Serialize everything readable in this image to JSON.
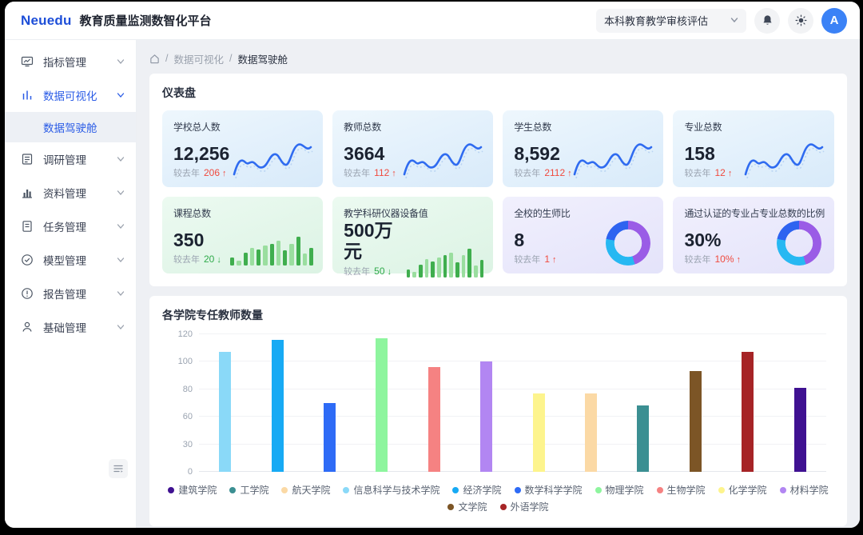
{
  "header": {
    "logo": "Neuedu",
    "title": "教育质量监测数智化平台",
    "project_select": {
      "value": "本科教育教学审核评估"
    },
    "avatar": "A"
  },
  "sidebar": {
    "items": [
      {
        "label": "指标管理",
        "icon": "gauge-icon",
        "active": false
      },
      {
        "label": "数据可视化",
        "icon": "bar-chart-icon",
        "active": true,
        "children": [
          {
            "label": "数据驾驶舱",
            "active": true
          }
        ]
      },
      {
        "label": "调研管理",
        "icon": "clipboard-icon",
        "active": false
      },
      {
        "label": "资料管理",
        "icon": "column-chart-icon",
        "active": false
      },
      {
        "label": "任务管理",
        "icon": "document-icon",
        "active": false
      },
      {
        "label": "模型管理",
        "icon": "check-circle-icon",
        "active": false
      },
      {
        "label": "报告管理",
        "icon": "info-circle-icon",
        "active": false
      },
      {
        "label": "基础管理",
        "icon": "user-icon",
        "active": false
      }
    ]
  },
  "breadcrumb": {
    "items": [
      "数据可视化",
      "数据驾驶舱"
    ]
  },
  "dashboard": {
    "title": "仪表盘",
    "compare_label": "较去年",
    "arrows": {
      "up": "↑",
      "down": "↓"
    },
    "cards": [
      {
        "title": "学校总人数",
        "value": "12,256",
        "delta": "206",
        "trend": "up",
        "viz": "line",
        "theme": "blue"
      },
      {
        "title": "教师总数",
        "value": "3664",
        "delta": "112",
        "trend": "up",
        "viz": "line",
        "theme": "blue"
      },
      {
        "title": "学生总数",
        "value": "8,592",
        "delta": "2112",
        "trend": "up",
        "viz": "line",
        "theme": "blue"
      },
      {
        "title": "专业总数",
        "value": "158",
        "delta": "12",
        "trend": "up",
        "viz": "line",
        "theme": "blue"
      },
      {
        "title": "课程总数",
        "value": "350",
        "delta": "20",
        "trend": "down",
        "viz": "bars",
        "theme": "green"
      },
      {
        "title": "教学科研仪器设备值",
        "value": "500万元",
        "delta": "50",
        "trend": "down",
        "viz": "bars",
        "theme": "green"
      },
      {
        "title": "全校的生师比",
        "value": "8",
        "delta": "1",
        "trend": "up",
        "viz": "donut",
        "theme": "purple"
      },
      {
        "title": "通过认证的专业占专业总数的比例",
        "value": "30%",
        "delta": "10%",
        "trend": "up",
        "viz": "donut",
        "theme": "purple"
      }
    ],
    "mini_bar_heights": [
      20,
      13,
      32,
      45,
      40,
      50,
      55,
      62,
      38,
      55,
      72,
      30,
      44
    ],
    "mini_bar_colors": {
      "dark": "#3fae4e",
      "light": "#9ade9f"
    },
    "donut_segments": [
      {
        "color": "#9a5ce6",
        "pct": 45
      },
      {
        "color": "#27b8f2",
        "pct": 33
      },
      {
        "color": "#2e63f0",
        "pct": 22
      }
    ],
    "spark_color": "#2f6bf0",
    "spark_ghost_color": "#b9d4f3"
  },
  "chart_data": {
    "type": "bar",
    "title": "各学院专任教师数量",
    "xlabel": "",
    "ylabel": "",
    "ylim": [
      0,
      120
    ],
    "yticks": [
      0,
      30,
      60,
      80,
      100,
      120
    ],
    "grid": true,
    "legend_position": "bottom",
    "series": [
      {
        "name": "信息科学与技术学院",
        "color": "#8ad9f8",
        "value": 107
      },
      {
        "name": "经济学院",
        "color": "#17aaf4",
        "value": 116
      },
      {
        "name": "数学科学学院",
        "color": "#2e6bf6",
        "value": 70
      },
      {
        "name": "物理学院",
        "color": "#8ef59e",
        "value": 117
      },
      {
        "name": "生物学院",
        "color": "#f58282",
        "value": 96
      },
      {
        "name": "材料学院",
        "color": "#b286f2",
        "value": 100
      },
      {
        "name": "化学学院",
        "color": "#fdf48d",
        "value": 77
      },
      {
        "name": "航天学院",
        "color": "#fbd9a5",
        "value": 77
      },
      {
        "name": "工学院",
        "color": "#3b8f92",
        "value": 68
      },
      {
        "name": "文学院",
        "color": "#7c5526",
        "value": 93
      },
      {
        "name": "外语学院",
        "color": "#a62426",
        "value": 107
      },
      {
        "name": "建筑学院",
        "color": "#3f1191",
        "value": 81
      }
    ],
    "legend_order": [
      "建筑学院",
      "工学院",
      "航天学院",
      "信息科学与技术学院",
      "经济学院",
      "数学科学学院",
      "物理学院",
      "生物学院",
      "化学学院",
      "材料学院",
      "文学院",
      "外语学院"
    ]
  }
}
